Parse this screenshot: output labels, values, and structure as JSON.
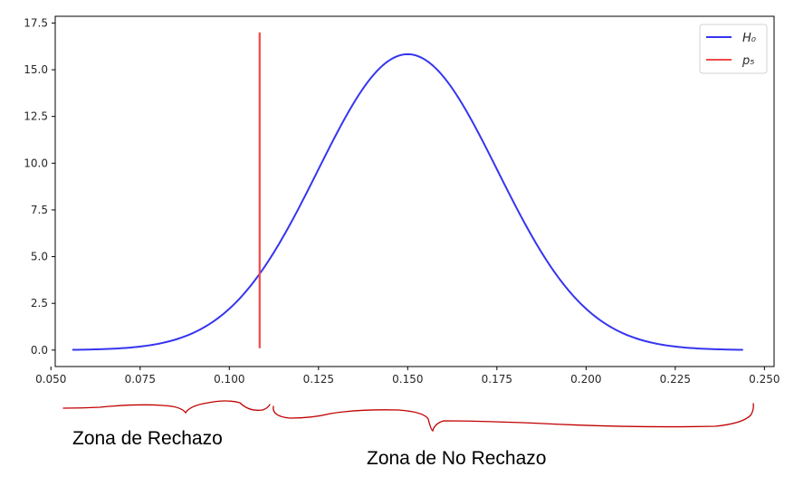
{
  "chart_data": {
    "type": "line",
    "title": "",
    "xlabel": "",
    "ylabel": "",
    "xlim": [
      0.0512,
      0.2527
    ],
    "ylim": [
      -0.88,
      17.86
    ],
    "x_ticks": [
      0.05,
      0.075,
      0.1,
      0.125,
      0.15,
      0.175,
      0.2,
      0.225,
      0.25
    ],
    "x_tick_labels": [
      "0.050",
      "0.075",
      "0.100",
      "0.125",
      "0.150",
      "0.175",
      "0.200",
      "0.225",
      "0.250"
    ],
    "y_ticks": [
      0,
      2.5,
      5,
      7.5,
      10,
      12.5,
      15,
      17.5
    ],
    "y_tick_labels": [
      "0.0",
      "2.5",
      "5.0",
      "7.5",
      "10.0",
      "12.5",
      "15.0",
      "17.5"
    ],
    "grid": false,
    "legend_position": "top-right",
    "series": [
      {
        "name": "H₀",
        "kind": "normal-pdf",
        "mean": 0.15,
        "std": 0.0252,
        "x_range": [
          0.056,
          0.244
        ],
        "x": [
          0.056,
          0.075,
          0.085,
          0.095,
          0.1,
          0.105,
          0.11,
          0.115,
          0.12,
          0.125,
          0.13,
          0.135,
          0.14,
          0.145,
          0.15,
          0.155,
          0.16,
          0.165,
          0.17,
          0.175,
          0.18,
          0.185,
          0.19,
          0.195,
          0.2,
          0.205,
          0.215,
          0.225,
          0.244
        ],
        "y": [
          0.01,
          0.19,
          0.74,
          1.92,
          2.75,
          3.88,
          5.24,
          6.73,
          8.25,
          9.83,
          11.6,
          13.3,
          14.6,
          15.5,
          15.8,
          15.5,
          14.6,
          13.3,
          11.6,
          9.83,
          8.25,
          6.73,
          5.24,
          3.88,
          2.75,
          1.92,
          0.74,
          0.19,
          0.01
        ],
        "color": "#3535f0"
      },
      {
        "name": "p₅",
        "kind": "vertical-line",
        "x": [
          0.1085,
          0.1085
        ],
        "y": [
          0.1,
          17.0
        ],
        "color": "#f04a4a"
      }
    ]
  },
  "annotations": {
    "reject_zone_label": "Zona de Rechazo",
    "no_reject_zone_label": "Zona de No Rechazo",
    "brace_color": "#c00000"
  }
}
